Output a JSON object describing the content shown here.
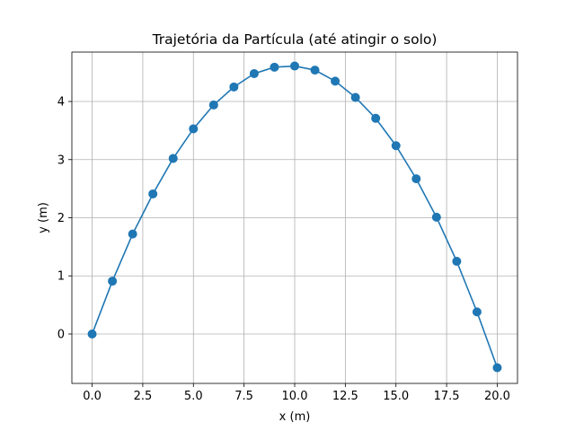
{
  "chart_data": {
    "type": "line",
    "title": "Trajetória da Partícula (até atingir o solo)",
    "xlabel": "x (m)",
    "ylabel": "y (m)",
    "xlim": [
      -1,
      21
    ],
    "ylim": [
      -0.85,
      4.85
    ],
    "xticks": [
      0,
      2.5,
      5,
      7.5,
      10,
      12.5,
      15,
      17.5,
      20
    ],
    "xtick_labels": [
      "0.0",
      "2.5",
      "5.0",
      "7.5",
      "10.0",
      "12.5",
      "15.0",
      "17.5",
      "20.0"
    ],
    "yticks": [
      0,
      1,
      2,
      3,
      4
    ],
    "ytick_labels": [
      "0",
      "1",
      "2",
      "3",
      "4"
    ],
    "grid": true,
    "series": [
      {
        "color": "#1f77b4",
        "marker": "circle",
        "x": [
          0,
          1,
          2,
          3,
          4,
          5,
          6,
          7,
          8,
          9,
          10,
          11,
          12,
          13,
          14,
          15,
          16,
          17,
          18,
          19,
          20
        ],
        "y": [
          0.0,
          0.91,
          1.72,
          2.41,
          3.02,
          3.53,
          3.94,
          4.25,
          4.48,
          4.59,
          4.61,
          4.54,
          4.35,
          4.07,
          3.71,
          3.24,
          2.67,
          2.01,
          1.25,
          0.38,
          -0.58
        ]
      }
    ]
  }
}
